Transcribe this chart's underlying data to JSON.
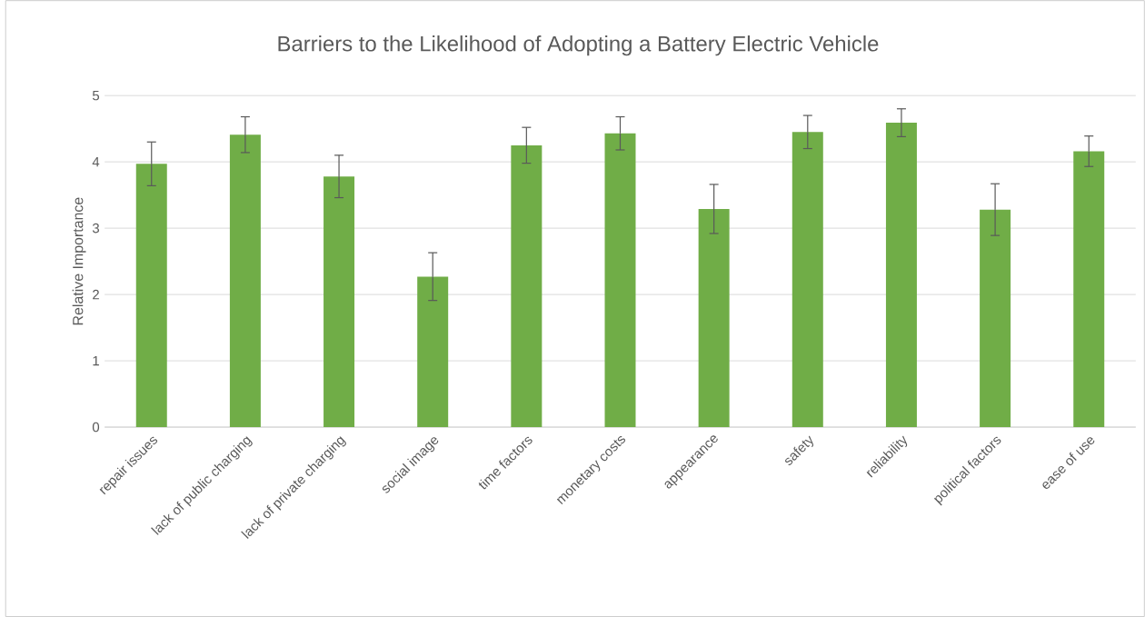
{
  "chart_data": {
    "type": "bar",
    "title": "Barriers to the Likelihood of Adopting a Battery Electric Vehicle",
    "ylabel": "Relative Importance",
    "categories": [
      "repair issues",
      "lack of public charging",
      "lack of private charging",
      "social image",
      "time factors",
      "monetary costs",
      "appearance",
      "safety",
      "reliability",
      "political factors",
      "ease of use"
    ],
    "values": [
      3.97,
      4.41,
      3.78,
      2.27,
      4.25,
      4.43,
      3.29,
      4.45,
      4.59,
      3.28,
      4.16
    ],
    "errors": [
      0.33,
      0.27,
      0.32,
      0.36,
      0.27,
      0.25,
      0.37,
      0.25,
      0.21,
      0.39,
      0.23
    ],
    "color": "#70ad47",
    "ylim": [
      0,
      5
    ],
    "yticks": [
      0,
      1,
      2,
      3,
      4,
      5
    ],
    "grid": "y"
  }
}
